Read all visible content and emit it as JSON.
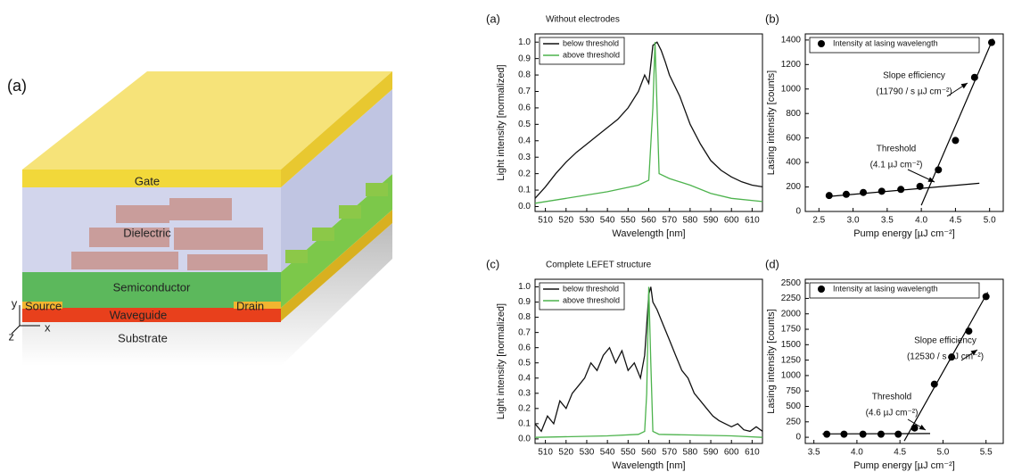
{
  "diagram": {
    "panel": "(a)",
    "layers": [
      "Gate",
      "Dielectric",
      "Semiconductor",
      "Waveguide",
      "Substrate"
    ],
    "source": "Source",
    "drain": "Drain",
    "axes": [
      "y",
      "x",
      "z"
    ]
  },
  "chart_data": [
    {
      "type": "line",
      "panel": "(a)",
      "title": "Without electrodes",
      "x_label": "Wavelength [nm]",
      "y_label": "Light intensity [normalized]",
      "xlim": [
        505,
        615
      ],
      "xticks": [
        510,
        520,
        530,
        540,
        550,
        560,
        570,
        580,
        590,
        600,
        610
      ],
      "ylim": [
        -0.03,
        1.05
      ],
      "yticks": [
        {
          "value": 0,
          "label": "0.0"
        },
        0.1,
        0.2,
        0.3,
        0.4,
        0.5,
        0.6,
        0.7,
        0.8,
        0.9,
        {
          "value": 1,
          "label": "1.0"
        }
      ],
      "series": [
        {
          "name": "below threshold",
          "color": "#111111",
          "x": [
            505,
            510,
            515,
            520,
            525,
            530,
            535,
            540,
            545,
            550,
            555,
            558,
            560,
            562,
            564,
            566,
            568,
            570,
            575,
            580,
            585,
            590,
            595,
            600,
            605,
            610,
            615
          ],
          "values": [
            0.05,
            0.12,
            0.2,
            0.27,
            0.33,
            0.38,
            0.43,
            0.48,
            0.53,
            0.6,
            0.7,
            0.8,
            0.75,
            0.98,
            1.0,
            0.95,
            0.88,
            0.8,
            0.67,
            0.5,
            0.38,
            0.28,
            0.22,
            0.18,
            0.15,
            0.13,
            0.12
          ]
        },
        {
          "name": "above threshold",
          "color": "#4db34d",
          "x": [
            505,
            520,
            540,
            555,
            560,
            562,
            563,
            564,
            565,
            570,
            580,
            590,
            600,
            615
          ],
          "values": [
            0.02,
            0.05,
            0.09,
            0.13,
            0.16,
            0.6,
            1.0,
            0.6,
            0.2,
            0.17,
            0.13,
            0.08,
            0.05,
            0.03
          ]
        }
      ]
    },
    {
      "type": "scatter",
      "panel": "(b)",
      "x_label": "Pump energy [µJ cm⁻²]",
      "y_label": "Lasing intensity [counts]",
      "xlim": [
        2.3,
        5.2
      ],
      "xticks": [
        2.5,
        {
          "value": 3,
          "label": "3.0"
        },
        3.5,
        {
          "value": 4,
          "label": "4.0"
        },
        4.5,
        {
          "value": 5,
          "label": "5.0"
        }
      ],
      "ylim": [
        0,
        1450
      ],
      "yticks": [
        0,
        200,
        400,
        600,
        800,
        1000,
        1200,
        1400
      ],
      "series": [
        {
          "name": "Intensity at lasing wavelength",
          "color": "#000000",
          "x": [
            2.65,
            2.9,
            3.15,
            3.42,
            3.7,
            3.98,
            4.25,
            4.5,
            4.78,
            5.03
          ],
          "values": [
            130,
            140,
            155,
            165,
            180,
            205,
            340,
            580,
            1095,
            1380
          ]
        }
      ],
      "fit_lines": [
        {
          "x": [
            2.6,
            4.85
          ],
          "values": [
            120,
            230
          ]
        },
        {
          "x": [
            4.0,
            5.05
          ],
          "values": [
            50,
            1410
          ]
        }
      ],
      "annotations": [
        "Slope efficiency",
        "(11790 / s µJ cm⁻²)",
        "Threshold",
        "(4.1 µJ cm⁻²)"
      ]
    },
    {
      "type": "line",
      "panel": "(c)",
      "title": "Complete LEFET structure",
      "x_label": "Wavelength [nm]",
      "y_label": "Light intensity [normalized]",
      "xlim": [
        505,
        615
      ],
      "xticks": [
        510,
        520,
        530,
        540,
        550,
        560,
        570,
        580,
        590,
        600,
        610
      ],
      "ylim": [
        -0.03,
        1.05
      ],
      "yticks": [
        {
          "value": 0,
          "label": "0.0"
        },
        0.1,
        0.2,
        0.3,
        0.4,
        0.5,
        0.6,
        0.7,
        0.8,
        0.9,
        {
          "value": 1,
          "label": "1.0"
        }
      ],
      "series": [
        {
          "name": "below threshold",
          "color": "#111111",
          "x": [
            505,
            508,
            511,
            514,
            517,
            520,
            523,
            526,
            529,
            532,
            535,
            538,
            541,
            544,
            547,
            550,
            553,
            556,
            558,
            559,
            560,
            561,
            562,
            564,
            567,
            570,
            573,
            576,
            579,
            582,
            585,
            588,
            591,
            594,
            597,
            600,
            603,
            606,
            609,
            612,
            615
          ],
          "values": [
            0.1,
            0.05,
            0.15,
            0.1,
            0.25,
            0.2,
            0.3,
            0.35,
            0.4,
            0.5,
            0.45,
            0.55,
            0.6,
            0.5,
            0.58,
            0.45,
            0.5,
            0.4,
            0.55,
            0.75,
            0.95,
            1.0,
            0.9,
            0.85,
            0.75,
            0.65,
            0.55,
            0.45,
            0.4,
            0.3,
            0.25,
            0.2,
            0.15,
            0.12,
            0.1,
            0.08,
            0.1,
            0.06,
            0.05,
            0.08,
            0.05
          ]
        },
        {
          "name": "above threshold",
          "color": "#4db34d",
          "x": [
            505,
            540,
            555,
            558,
            559,
            560,
            561,
            562,
            565,
            600,
            615
          ],
          "values": [
            0.01,
            0.02,
            0.03,
            0.05,
            0.3,
            1.0,
            0.5,
            0.05,
            0.03,
            0.02,
            0.01
          ]
        }
      ]
    },
    {
      "type": "scatter",
      "panel": "(d)",
      "x_label": "Pump energy [µJ cm⁻²]",
      "y_label": "Lasing intensity [counts]",
      "xlim": [
        3.4,
        5.7
      ],
      "xticks": [
        3.5,
        {
          "value": 4,
          "label": "4.0"
        },
        4.5,
        {
          "value": 5,
          "label": "5.0"
        },
        5.5
      ],
      "ylim": [
        -100,
        2560
      ],
      "yticks": [
        0,
        250,
        500,
        750,
        1000,
        1250,
        1500,
        1750,
        2000,
        2250,
        2500
      ],
      "series": [
        {
          "name": "Intensity at lasing wavelength",
          "color": "#000000",
          "x": [
            3.65,
            3.85,
            4.07,
            4.28,
            4.48,
            4.67,
            4.9,
            5.1,
            5.3,
            5.5
          ],
          "values": [
            50,
            50,
            50,
            50,
            50,
            150,
            860,
            1300,
            1720,
            2280
          ]
        }
      ],
      "fit_lines": [
        {
          "x": [
            3.6,
            4.85
          ],
          "values": [
            55,
            60
          ]
        },
        {
          "x": [
            4.55,
            5.52
          ],
          "values": [
            -60,
            2350
          ]
        }
      ],
      "annotations": [
        "Slope efficiency",
        "(12530 / s µJ cm⁻²)",
        "Threshold",
        "(4.6 µJ cm⁻²)"
      ]
    }
  ]
}
